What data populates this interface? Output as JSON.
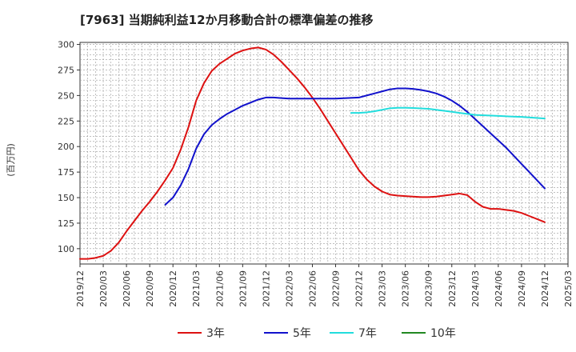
{
  "chart_data": {
    "type": "line",
    "title": "[7963]  当期純利益12か月移動合計の標準偏差の推移",
    "ylabel": "(百万円)",
    "xlabel": "",
    "ylim": [
      85,
      302
    ],
    "yticks": [
      100,
      125,
      150,
      175,
      200,
      225,
      250,
      275,
      300
    ],
    "xticks": [
      "2019/12",
      "2020/03",
      "2020/06",
      "2020/09",
      "2020/12",
      "2021/03",
      "2021/06",
      "2021/09",
      "2021/12",
      "2022/03",
      "2022/06",
      "2022/09",
      "2022/12",
      "2023/03",
      "2023/06",
      "2023/09",
      "2023/12",
      "2024/03",
      "2024/06",
      "2024/09",
      "2024/12",
      "2025/03"
    ],
    "legend_position": "bottom",
    "grid": true,
    "series": [
      {
        "name": "3年",
        "color": "#dd1111",
        "points": [
          [
            "2019/12",
            90
          ],
          [
            "2020/01",
            90
          ],
          [
            "2020/02",
            91
          ],
          [
            "2020/03",
            93
          ],
          [
            "2020/04",
            98
          ],
          [
            "2020/05",
            106
          ],
          [
            "2020/06",
            117
          ],
          [
            "2020/07",
            127
          ],
          [
            "2020/08",
            137
          ],
          [
            "2020/09",
            146
          ],
          [
            "2020/10",
            156
          ],
          [
            "2020/11",
            167
          ],
          [
            "2020/12",
            179
          ],
          [
            "2021/01",
            197
          ],
          [
            "2021/02",
            219
          ],
          [
            "2021/03",
            245
          ],
          [
            "2021/04",
            262
          ],
          [
            "2021/05",
            274
          ],
          [
            "2021/06",
            281
          ],
          [
            "2021/07",
            286
          ],
          [
            "2021/08",
            291
          ],
          [
            "2021/09",
            294
          ],
          [
            "2021/10",
            296
          ],
          [
            "2021/11",
            297
          ],
          [
            "2021/12",
            295
          ],
          [
            "2022/01",
            290
          ],
          [
            "2022/02",
            283
          ],
          [
            "2022/03",
            275
          ],
          [
            "2022/04",
            267
          ],
          [
            "2022/05",
            258
          ],
          [
            "2022/06",
            248
          ],
          [
            "2022/07",
            237
          ],
          [
            "2022/08",
            225
          ],
          [
            "2022/09",
            213
          ],
          [
            "2022/10",
            201
          ],
          [
            "2022/11",
            189
          ],
          [
            "2022/12",
            177
          ],
          [
            "2023/01",
            168
          ],
          [
            "2023/02",
            161
          ],
          [
            "2023/03",
            156
          ],
          [
            "2023/04",
            153
          ],
          [
            "2023/05",
            152
          ],
          [
            "2023/06",
            151.5
          ],
          [
            "2023/07",
            151
          ],
          [
            "2023/08",
            150.5
          ],
          [
            "2023/09",
            150.5
          ],
          [
            "2023/10",
            151
          ],
          [
            "2023/11",
            152
          ],
          [
            "2023/12",
            153
          ],
          [
            "2024/01",
            154
          ],
          [
            "2024/02",
            152.5
          ],
          [
            "2024/03",
            146
          ],
          [
            "2024/04",
            141
          ],
          [
            "2024/05",
            139
          ],
          [
            "2024/06",
            139
          ],
          [
            "2024/07",
            138
          ],
          [
            "2024/08",
            137
          ],
          [
            "2024/09",
            135
          ],
          [
            "2024/10",
            132
          ],
          [
            "2024/11",
            129
          ],
          [
            "2024/12",
            126
          ]
        ]
      },
      {
        "name": "5年",
        "color": "#1111cc",
        "points": [
          [
            "2020/11",
            143
          ],
          [
            "2020/12",
            150
          ],
          [
            "2021/01",
            162
          ],
          [
            "2021/02",
            178
          ],
          [
            "2021/03",
            198
          ],
          [
            "2021/04",
            212
          ],
          [
            "2021/05",
            221
          ],
          [
            "2021/06",
            227
          ],
          [
            "2021/07",
            232
          ],
          [
            "2021/08",
            236
          ],
          [
            "2021/09",
            240
          ],
          [
            "2021/10",
            243
          ],
          [
            "2021/11",
            246
          ],
          [
            "2021/12",
            248
          ],
          [
            "2022/01",
            248
          ],
          [
            "2022/02",
            247.5
          ],
          [
            "2022/03",
            247
          ],
          [
            "2022/06",
            247
          ],
          [
            "2022/09",
            247
          ],
          [
            "2022/12",
            248
          ],
          [
            "2023/01",
            250
          ],
          [
            "2023/02",
            252
          ],
          [
            "2023/03",
            254
          ],
          [
            "2023/04",
            256
          ],
          [
            "2023/05",
            257
          ],
          [
            "2023/06",
            257
          ],
          [
            "2023/07",
            256.5
          ],
          [
            "2023/08",
            255.5
          ],
          [
            "2023/09",
            254
          ],
          [
            "2023/10",
            252
          ],
          [
            "2023/11",
            249
          ],
          [
            "2023/12",
            245
          ],
          [
            "2024/01",
            240
          ],
          [
            "2024/02",
            234
          ],
          [
            "2024/03",
            227
          ],
          [
            "2024/04",
            220
          ],
          [
            "2024/05",
            213
          ],
          [
            "2024/06",
            206
          ],
          [
            "2024/07",
            199
          ],
          [
            "2024/08",
            191
          ],
          [
            "2024/09",
            183
          ],
          [
            "2024/10",
            175
          ],
          [
            "2024/11",
            167
          ],
          [
            "2024/12",
            159
          ]
        ]
      },
      {
        "name": "7年",
        "color": "#22dddd",
        "points": [
          [
            "2022/11",
            233
          ],
          [
            "2022/12",
            233
          ],
          [
            "2023/01",
            233.5
          ],
          [
            "2023/02",
            234.5
          ],
          [
            "2023/03",
            236
          ],
          [
            "2023/04",
            237.5
          ],
          [
            "2023/05",
            238
          ],
          [
            "2023/06",
            238
          ],
          [
            "2023/07",
            237.8
          ],
          [
            "2023/08",
            237.4
          ],
          [
            "2023/09",
            237
          ],
          [
            "2023/10",
            236
          ],
          [
            "2023/11",
            235
          ],
          [
            "2023/12",
            234
          ],
          [
            "2024/01",
            233
          ],
          [
            "2024/02",
            232
          ],
          [
            "2024/03",
            231
          ],
          [
            "2024/06",
            230
          ],
          [
            "2024/09",
            229
          ],
          [
            "2024/12",
            227.5
          ]
        ]
      },
      {
        "name": "10年",
        "color": "#228822",
        "points": []
      }
    ]
  }
}
